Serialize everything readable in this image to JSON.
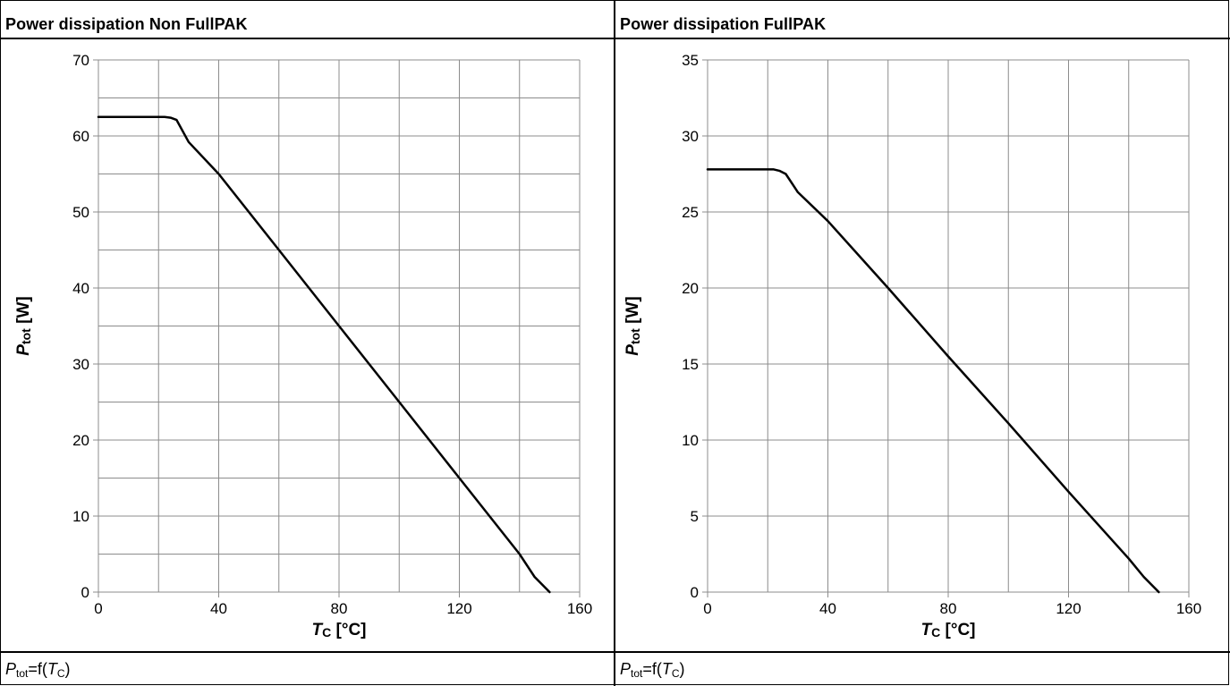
{
  "panels": [
    {
      "title": "Power dissipation Non FullPAK",
      "caption": {
        "symbol": "P",
        "sub": "tot",
        "eq": "=f(",
        "arg": "T",
        "argsub": "C",
        "close": ")"
      }
    },
    {
      "title": "Power dissipation FullPAK",
      "caption": {
        "symbol": "P",
        "sub": "tot",
        "eq": "=f(",
        "arg": "T",
        "argsub": "C",
        "close": ")"
      }
    }
  ],
  "chart_data": [
    {
      "type": "line",
      "title": "Power dissipation Non FullPAK",
      "xlabel": {
        "symbol": "T",
        "sub": "C",
        "unit": " [°C]"
      },
      "ylabel": {
        "symbol": "P",
        "sub": "tot",
        "unit": " [W]"
      },
      "xlim": [
        0,
        160
      ],
      "ylim": [
        0,
        70
      ],
      "xticks": [
        0,
        40,
        80,
        120,
        160
      ],
      "yticks": [
        0,
        10,
        20,
        30,
        40,
        50,
        60,
        70
      ],
      "xgrid": [
        0,
        20,
        40,
        60,
        80,
        100,
        120,
        140,
        160
      ],
      "ygrid": [
        0,
        5,
        10,
        15,
        20,
        25,
        30,
        35,
        40,
        45,
        50,
        55,
        60,
        65,
        70
      ],
      "grid": true,
      "series": [
        {
          "x": [
            0,
            22,
            24,
            26,
            30,
            40,
            60,
            80,
            100,
            120,
            140,
            145,
            150
          ],
          "y": [
            62.5,
            62.5,
            62.4,
            62.1,
            59.2,
            55.0,
            45.0,
            35.0,
            25.0,
            15.0,
            5.0,
            2.0,
            0.0
          ]
        }
      ]
    },
    {
      "type": "line",
      "title": "Power dissipation FullPAK",
      "xlabel": {
        "symbol": "T",
        "sub": "C",
        "unit": " [°C]"
      },
      "ylabel": {
        "symbol": "P",
        "sub": "tot",
        "unit": " [W]"
      },
      "xlim": [
        0,
        160
      ],
      "ylim": [
        0,
        35
      ],
      "xticks": [
        0,
        40,
        80,
        120,
        160
      ],
      "yticks": [
        0,
        5,
        10,
        15,
        20,
        25,
        30,
        35
      ],
      "xgrid": [
        0,
        20,
        40,
        60,
        80,
        100,
        120,
        140,
        160
      ],
      "ygrid": [
        0,
        5,
        10,
        15,
        20,
        25,
        30,
        35
      ],
      "grid": true,
      "series": [
        {
          "x": [
            0,
            22,
            24,
            26,
            30,
            40,
            60,
            80,
            100,
            120,
            140,
            145,
            150
          ],
          "y": [
            27.8,
            27.8,
            27.7,
            27.5,
            26.3,
            24.4,
            20.0,
            15.5,
            11.1,
            6.6,
            2.2,
            1.0,
            0.0
          ]
        }
      ]
    }
  ]
}
